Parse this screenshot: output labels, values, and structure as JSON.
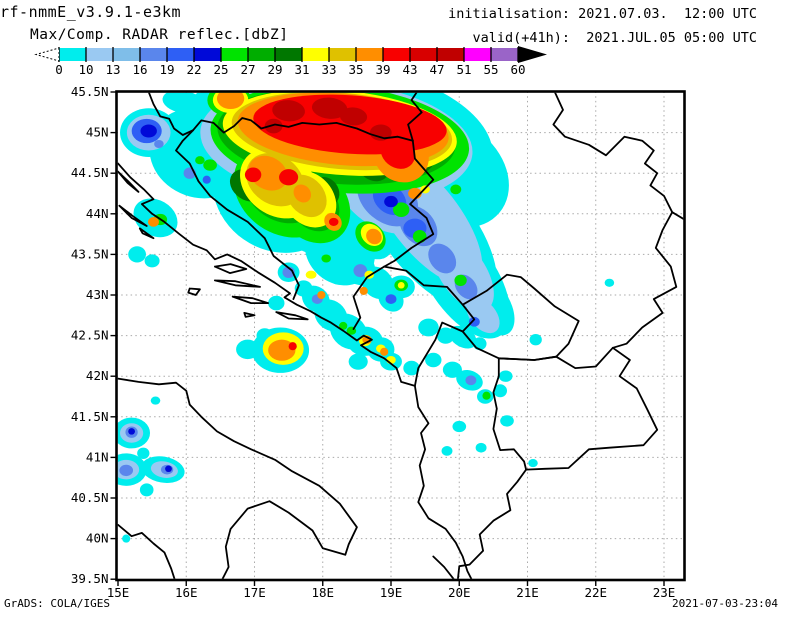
{
  "header": {
    "model_title": "rf-nmmE_v3.9.1-e3km",
    "product_title": "Max/Comp. RADAR reflec.[dbZ]",
    "init_time": "initialisation: 2021.07.03.  12:00 UTC",
    "valid_time": "valid(+41h):  2021.JUL.05 05:00 UTC"
  },
  "footer": {
    "grads_credit": "GrADS: COLA/IGES",
    "creation_timestamp": "2021-07-03-23:04"
  },
  "colorbar": {
    "tick_labels": [
      "0",
      "10",
      "13",
      "16",
      "19",
      "22",
      "25",
      "27",
      "29",
      "31",
      "33",
      "35",
      "39",
      "43",
      "47",
      "51",
      "55",
      "60"
    ],
    "segment_colors": [
      "#00EDED",
      "#9AC9F2",
      "#7FBEE9",
      "#5A86EC",
      "#2E5FF5",
      "#0009D8",
      "#00E300",
      "#00AD00",
      "#007700",
      "#FFFF00",
      "#DFC100",
      "#FF8E00",
      "#F80000",
      "#D80000",
      "#C00000",
      "#FF00FF",
      "#9A64C8"
    ],
    "overflow_arrow_color": "#000000"
  },
  "map": {
    "lat_tick_labels": [
      "45.5N",
      "45N",
      "44.5N",
      "44N",
      "43.5N",
      "43N",
      "42.5N",
      "42N",
      "41.5N",
      "41N",
      "40.5N",
      "40N",
      "39.5N"
    ],
    "lon_tick_labels": [
      "15E",
      "16E",
      "17E",
      "18E",
      "19E",
      "20E",
      "21E",
      "22E",
      "23E"
    ],
    "grid_color": "#aaaaaa",
    "border_color": "#000000",
    "frame_color": "#000000",
    "background": "#ffffff"
  },
  "chart_data": {
    "type": "map-contour",
    "variable": "Max/Comp. RADAR reflectivity [dbZ]",
    "region": {
      "lon_min": 15.0,
      "lon_max": 23.32,
      "lat_min": 39.5,
      "lat_max": 45.5
    },
    "levels_dbz": [
      0,
      10,
      13,
      16,
      19,
      22,
      25,
      27,
      29,
      31,
      33,
      35,
      39,
      43,
      47,
      51,
      55,
      60
    ],
    "level_colors": {
      "c": "#00EDED",
      "lb": "#9AC9F2",
      "mb": "#5A86EC",
      "b": "#2E5FF5",
      "db": "#0009D8",
      "g1": "#00E300",
      "g2": "#00AD00",
      "g3": "#007700",
      "y": "#FFFF00",
      "y2": "#DFC100",
      "o": "#FF8E00",
      "r": "#F80000",
      "r3": "#C00000"
    },
    "level_order": [
      "c",
      "lb",
      "mb",
      "b",
      "g1",
      "g2",
      "g3",
      "db",
      "y",
      "y2",
      "o",
      "r",
      "r3"
    ],
    "echoes": [
      [
        "c",
        18.15,
        44.85,
        2.35,
        1.0,
        5
      ],
      [
        "c",
        16.2,
        44.75,
        0.75,
        0.55,
        20
      ],
      [
        "c",
        15.95,
        45.38,
        0.3,
        0.14,
        10
      ],
      [
        "c",
        16.6,
        45.35,
        0.45,
        0.28,
        0
      ],
      [
        "c",
        15.45,
        45.0,
        0.42,
        0.3,
        0
      ],
      [
        "c",
        19.9,
        44.5,
        0.9,
        0.6,
        40
      ],
      [
        "c",
        17.35,
        44.3,
        1.0,
        0.75,
        35
      ],
      [
        "c",
        17.9,
        44.1,
        0.8,
        0.55,
        50
      ],
      [
        "c",
        18.25,
        43.55,
        0.55,
        0.4,
        45
      ],
      [
        "c",
        18.72,
        43.7,
        0.35,
        0.22,
        45
      ],
      [
        "c",
        19.15,
        43.1,
        0.2,
        0.14,
        0
      ],
      [
        "c",
        19.55,
        43.8,
        1.4,
        0.55,
        52
      ],
      [
        "c",
        20.05,
        43.2,
        1.0,
        0.42,
        56
      ],
      [
        "c",
        20.45,
        42.88,
        0.5,
        0.24,
        58
      ],
      [
        "c",
        20.22,
        42.67,
        0.14,
        0.1,
        0
      ],
      [
        "c",
        16.15,
        44.58,
        0.3,
        0.24,
        0
      ],
      [
        "c",
        15.55,
        43.95,
        0.34,
        0.22,
        30
      ],
      [
        "c",
        15.28,
        43.5,
        0.13,
        0.1,
        0
      ],
      [
        "c",
        15.5,
        43.42,
        0.11,
        0.08,
        0
      ],
      [
        "c",
        18.05,
        43.45,
        0.25,
        0.18,
        45
      ],
      [
        "c",
        18.2,
        43.25,
        0.16,
        0.11,
        45
      ],
      [
        "c",
        18.5,
        43.35,
        0.3,
        0.2,
        45
      ],
      [
        "c",
        18.8,
        43.15,
        0.26,
        0.18,
        45
      ],
      [
        "c",
        19.0,
        42.95,
        0.2,
        0.14,
        45
      ],
      [
        "c",
        17.5,
        43.28,
        0.16,
        0.12,
        0
      ],
      [
        "c",
        17.72,
        43.08,
        0.13,
        0.1,
        0
      ],
      [
        "c",
        17.32,
        42.9,
        0.12,
        0.09,
        0
      ],
      [
        "c",
        17.9,
        42.95,
        0.22,
        0.15,
        40
      ],
      [
        "c",
        18.12,
        42.75,
        0.26,
        0.18,
        40
      ],
      [
        "c",
        18.38,
        42.55,
        0.3,
        0.2,
        40
      ],
      [
        "c",
        18.62,
        42.43,
        0.26,
        0.18,
        0
      ],
      [
        "c",
        18.85,
        42.33,
        0.2,
        0.15,
        0
      ],
      [
        "c",
        18.52,
        42.18,
        0.14,
        0.1,
        0
      ],
      [
        "c",
        19.0,
        42.18,
        0.16,
        0.11,
        0
      ],
      [
        "c",
        19.3,
        42.1,
        0.12,
        0.09,
        0
      ],
      [
        "c",
        17.38,
        42.32,
        0.42,
        0.28,
        0
      ],
      [
        "c",
        17.15,
        42.5,
        0.12,
        0.09,
        0
      ],
      [
        "c",
        16.9,
        42.33,
        0.17,
        0.12,
        0
      ],
      [
        "c",
        19.55,
        42.6,
        0.15,
        0.11,
        0
      ],
      [
        "c",
        19.8,
        42.5,
        0.13,
        0.1,
        0
      ],
      [
        "c",
        20.05,
        42.48,
        0.22,
        0.12,
        30
      ],
      [
        "c",
        20.3,
        42.4,
        0.1,
        0.08,
        0
      ],
      [
        "c",
        21.12,
        42.45,
        0.09,
        0.07,
        0
      ],
      [
        "c",
        19.62,
        42.2,
        0.12,
        0.09,
        0
      ],
      [
        "c",
        19.9,
        42.08,
        0.14,
        0.1,
        0
      ],
      [
        "c",
        20.15,
        41.95,
        0.2,
        0.12,
        20
      ],
      [
        "c",
        20.38,
        41.75,
        0.12,
        0.09,
        0
      ],
      [
        "c",
        20.6,
        41.82,
        0.1,
        0.08,
        0
      ],
      [
        "c",
        20.68,
        42.0,
        0.1,
        0.07,
        0
      ],
      [
        "c",
        20.7,
        41.45,
        0.1,
        0.07,
        0
      ],
      [
        "c",
        20.0,
        41.38,
        0.1,
        0.07,
        0
      ],
      [
        "c",
        19.82,
        41.08,
        0.08,
        0.06,
        0
      ],
      [
        "c",
        20.32,
        41.12,
        0.08,
        0.06,
        0
      ],
      [
        "c",
        21.08,
        40.93,
        0.07,
        0.05,
        0
      ],
      [
        "c",
        22.2,
        43.15,
        0.07,
        0.05,
        0
      ],
      [
        "c",
        20.6,
        44.2,
        0.06,
        0.05,
        0
      ],
      [
        "c",
        15.2,
        41.3,
        0.27,
        0.19,
        0
      ],
      [
        "c",
        15.12,
        40.85,
        0.3,
        0.2,
        0
      ],
      [
        "c",
        15.66,
        40.85,
        0.32,
        0.16,
        10
      ],
      [
        "c",
        15.42,
        40.6,
        0.1,
        0.08,
        0
      ],
      [
        "c",
        15.37,
        41.05,
        0.09,
        0.07,
        0
      ],
      [
        "c",
        15.55,
        41.7,
        0.07,
        0.05,
        0
      ],
      [
        "c",
        15.12,
        40.0,
        0.06,
        0.05,
        0
      ],
      [
        "lb",
        19.5,
        43.95,
        1.2,
        0.42,
        52
      ],
      [
        "lb",
        18.9,
        44.35,
        0.85,
        0.5,
        40
      ],
      [
        "lb",
        18.2,
        44.88,
        2.0,
        0.75,
        5
      ],
      [
        "lb",
        15.45,
        45.0,
        0.32,
        0.22,
        0
      ],
      [
        "lb",
        20.05,
        43.28,
        0.65,
        0.28,
        56
      ],
      [
        "lb",
        20.35,
        42.75,
        0.3,
        0.16,
        50
      ],
      [
        "lb",
        15.2,
        41.3,
        0.17,
        0.12,
        0
      ],
      [
        "lb",
        15.12,
        40.85,
        0.19,
        0.12,
        0
      ],
      [
        "lb",
        15.68,
        40.85,
        0.2,
        0.1,
        10
      ],
      [
        "mb",
        18.95,
        44.2,
        0.5,
        0.3,
        40
      ],
      [
        "mb",
        19.4,
        43.85,
        0.33,
        0.2,
        50
      ],
      [
        "mb",
        19.75,
        43.45,
        0.24,
        0.15,
        52
      ],
      [
        "mb",
        20.1,
        43.1,
        0.2,
        0.12,
        52
      ],
      [
        "mb",
        17.5,
        43.28,
        0.09,
        0.07,
        0
      ],
      [
        "mb",
        18.55,
        43.3,
        0.1,
        0.08,
        0
      ],
      [
        "mb",
        17.92,
        42.95,
        0.08,
        0.06,
        0
      ],
      [
        "mb",
        20.17,
        41.95,
        0.08,
        0.06,
        0
      ],
      [
        "mb",
        15.2,
        41.31,
        0.09,
        0.07,
        0
      ],
      [
        "mb",
        15.12,
        40.84,
        0.1,
        0.07,
        0
      ],
      [
        "mb",
        15.72,
        40.85,
        0.09,
        0.06,
        0
      ],
      [
        "mb",
        16.05,
        44.5,
        0.09,
        0.07,
        0
      ],
      [
        "mb",
        15.6,
        44.86,
        0.07,
        0.05,
        0
      ],
      [
        "b",
        15.42,
        45.02,
        0.22,
        0.15,
        0
      ],
      [
        "b",
        18.98,
        44.18,
        0.27,
        0.17,
        40
      ],
      [
        "b",
        19.35,
        43.82,
        0.17,
        0.12,
        0
      ],
      [
        "b",
        18.55,
        44.48,
        0.24,
        0.15,
        40
      ],
      [
        "b",
        17.85,
        44.35,
        0.12,
        0.09,
        0
      ],
      [
        "b",
        19.0,
        42.95,
        0.08,
        0.06,
        0
      ],
      [
        "b",
        16.3,
        44.42,
        0.06,
        0.05,
        0
      ],
      [
        "b",
        20.22,
        42.67,
        0.08,
        0.06,
        0
      ],
      [
        "g1",
        18.25,
        44.92,
        1.9,
        0.66,
        5
      ],
      [
        "g1",
        17.45,
        44.3,
        0.8,
        0.55,
        35
      ],
      [
        "g1",
        17.85,
        44.12,
        0.62,
        0.42,
        50
      ],
      [
        "g1",
        16.63,
        45.4,
        0.32,
        0.2,
        0
      ],
      [
        "g1",
        18.7,
        43.72,
        0.25,
        0.16,
        45
      ],
      [
        "g1",
        19.15,
        43.12,
        0.1,
        0.07,
        0
      ],
      [
        "g1",
        19.15,
        44.05,
        0.12,
        0.09,
        0
      ],
      [
        "g1",
        19.42,
        43.72,
        0.1,
        0.08,
        0
      ],
      [
        "g1",
        19.95,
        44.3,
        0.08,
        0.06,
        0
      ],
      [
        "g1",
        20.02,
        43.18,
        0.09,
        0.07,
        0
      ],
      [
        "g1",
        15.62,
        43.93,
        0.1,
        0.07,
        0
      ],
      [
        "g1",
        16.35,
        44.6,
        0.1,
        0.07,
        0
      ],
      [
        "g1",
        16.2,
        44.66,
        0.07,
        0.05,
        0
      ],
      [
        "g1",
        20.4,
        41.76,
        0.06,
        0.05,
        0
      ],
      [
        "g1",
        18.42,
        42.56,
        0.07,
        0.05,
        0
      ],
      [
        "g1",
        18.3,
        42.62,
        0.06,
        0.05,
        0
      ],
      [
        "g1",
        18.05,
        43.45,
        0.07,
        0.05,
        0
      ],
      [
        "g2",
        18.2,
        44.95,
        1.75,
        0.58,
        5
      ],
      [
        "g2",
        17.4,
        44.32,
        0.6,
        0.4,
        35
      ],
      [
        "g2",
        17.88,
        44.1,
        0.4,
        0.28,
        50
      ],
      [
        "g3",
        19.3,
        44.78,
        0.38,
        0.3,
        40
      ],
      [
        "g3",
        18.75,
        44.58,
        0.24,
        0.17,
        30
      ],
      [
        "g3",
        16.9,
        44.35,
        0.28,
        0.18,
        35
      ],
      [
        "g3",
        18.05,
        44.28,
        0.22,
        0.15,
        55
      ],
      [
        "db",
        17.05,
        44.78,
        0.12,
        0.09,
        0
      ],
      [
        "db",
        17.6,
        44.58,
        0.1,
        0.08,
        0
      ],
      [
        "db",
        18.2,
        44.68,
        0.1,
        0.07,
        0
      ],
      [
        "db",
        19.0,
        44.15,
        0.1,
        0.07,
        0
      ],
      [
        "db",
        15.45,
        45.02,
        0.12,
        0.08,
        0
      ],
      [
        "db",
        15.2,
        41.32,
        0.05,
        0.04,
        0
      ],
      [
        "db",
        15.74,
        40.86,
        0.05,
        0.04,
        0
      ],
      [
        "y",
        18.25,
        45.0,
        1.72,
        0.52,
        5
      ],
      [
        "y",
        17.35,
        44.38,
        0.6,
        0.4,
        35
      ],
      [
        "y",
        17.8,
        44.18,
        0.45,
        0.3,
        50
      ],
      [
        "y",
        16.65,
        45.4,
        0.26,
        0.16,
        0
      ],
      [
        "y",
        17.42,
        42.34,
        0.3,
        0.2,
        0
      ],
      [
        "y",
        18.72,
        43.74,
        0.18,
        0.12,
        45
      ],
      [
        "y",
        17.83,
        43.25,
        0.08,
        0.05,
        0
      ],
      [
        "y",
        19.5,
        44.3,
        0.07,
        0.05,
        0
      ],
      [
        "y",
        18.68,
        43.25,
        0.07,
        0.05,
        0
      ],
      [
        "y",
        18.62,
        42.44,
        0.09,
        0.07,
        0
      ],
      [
        "y",
        18.85,
        42.34,
        0.07,
        0.05,
        0
      ],
      [
        "y",
        19.0,
        42.2,
        0.07,
        0.05,
        0
      ],
      [
        "y",
        19.15,
        43.12,
        0.05,
        0.04,
        0
      ],
      [
        "y2",
        18.28,
        45.02,
        1.62,
        0.47,
        5
      ],
      [
        "y2",
        17.3,
        44.42,
        0.45,
        0.3,
        35
      ],
      [
        "y2",
        17.76,
        44.22,
        0.34,
        0.22,
        50
      ],
      [
        "o",
        18.3,
        45.04,
        1.55,
        0.44,
        5
      ],
      [
        "o",
        16.65,
        45.42,
        0.2,
        0.13,
        0
      ],
      [
        "o",
        17.2,
        44.5,
        0.3,
        0.2,
        30
      ],
      [
        "o",
        17.7,
        44.25,
        0.14,
        0.1,
        50
      ],
      [
        "o",
        18.15,
        43.9,
        0.14,
        0.1,
        50
      ],
      [
        "o",
        18.75,
        43.72,
        0.12,
        0.09,
        45
      ],
      [
        "o",
        19.15,
        44.72,
        0.42,
        0.32,
        40
      ],
      [
        "o",
        19.35,
        44.25,
        0.1,
        0.07,
        0
      ],
      [
        "o",
        17.4,
        42.32,
        0.2,
        0.13,
        0
      ],
      [
        "o",
        17.98,
        43.0,
        0.06,
        0.05,
        0
      ],
      [
        "o",
        18.65,
        42.45,
        0.07,
        0.05,
        0
      ],
      [
        "o",
        18.9,
        42.3,
        0.06,
        0.05,
        0
      ],
      [
        "o",
        18.6,
        43.05,
        0.06,
        0.05,
        0
      ],
      [
        "o",
        15.52,
        43.9,
        0.08,
        0.06,
        0
      ],
      [
        "r",
        18.4,
        45.1,
        1.42,
        0.36,
        4
      ],
      [
        "r",
        19.1,
        44.76,
        0.27,
        0.19,
        40
      ],
      [
        "r",
        17.5,
        44.45,
        0.14,
        0.1,
        0
      ],
      [
        "r",
        16.98,
        44.48,
        0.12,
        0.09,
        0
      ],
      [
        "r",
        18.16,
        43.9,
        0.07,
        0.05,
        0
      ],
      [
        "r",
        17.56,
        42.37,
        0.06,
        0.05,
        0
      ],
      [
        "r3",
        17.5,
        45.27,
        0.24,
        0.13,
        5
      ],
      [
        "r3",
        18.1,
        45.3,
        0.26,
        0.13,
        5
      ],
      [
        "r3",
        18.45,
        45.2,
        0.2,
        0.11,
        5
      ],
      [
        "r3",
        18.85,
        45.0,
        0.16,
        0.1,
        0
      ],
      [
        "r3",
        17.28,
        45.08,
        0.13,
        0.09,
        0
      ]
    ]
  }
}
